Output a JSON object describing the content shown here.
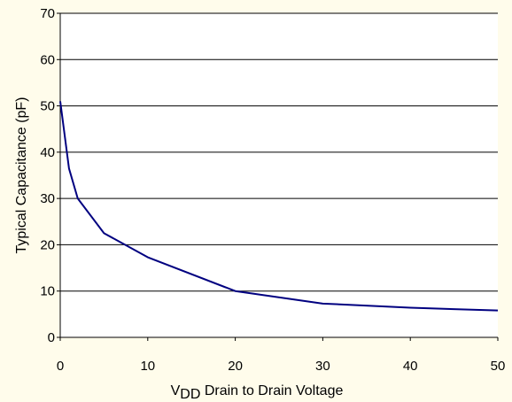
{
  "chart_data": {
    "type": "line",
    "title": "",
    "xlabel": {
      "main": "V",
      "subscript": "DD",
      "rest": " Drain to Drain Voltage"
    },
    "ylabel": "Typical Capacitance (pF)",
    "xlim": [
      0,
      50
    ],
    "ylim": [
      0,
      70
    ],
    "x_ticks": [
      "0",
      "10",
      "20",
      "30",
      "40",
      "50"
    ],
    "y_ticks": [
      "0",
      "10",
      "20",
      "30",
      "40",
      "50",
      "60",
      "70"
    ],
    "grid": "horizontal",
    "legend": "none",
    "series": [
      {
        "color": "#000080",
        "x": [
          0,
          1,
          2,
          5,
          10,
          20,
          30,
          40,
          50
        ],
        "y": [
          51,
          36.5,
          30,
          22.5,
          17.3,
          10,
          7.3,
          6.4,
          5.8
        ]
      }
    ]
  },
  "colors": {
    "background": "#FFFCEB",
    "plot_area": "#FFFFFF",
    "grid": "#000000",
    "line": "#000080"
  }
}
